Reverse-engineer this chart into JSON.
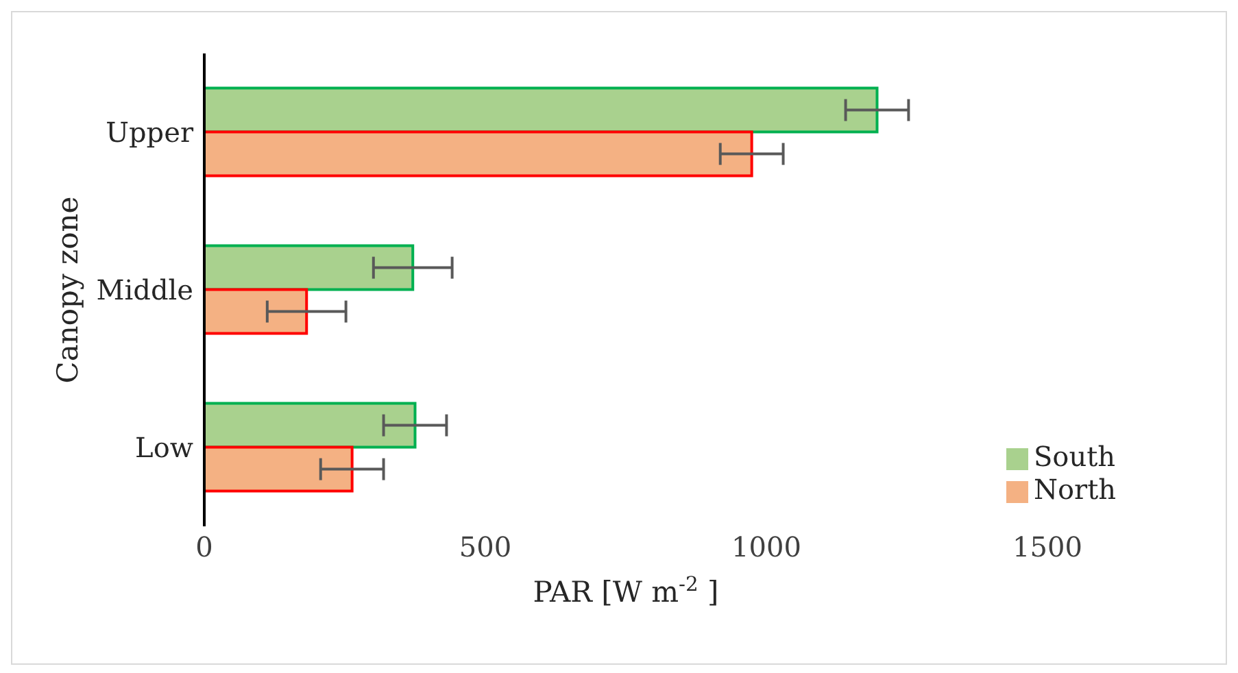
{
  "chart_data": {
    "type": "bar",
    "orientation": "horizontal",
    "xlabel": "PAR [W m$^{-2}$ ]",
    "ylabel": "Canopy zone",
    "categories": [
      "Upper",
      "Middle",
      "Low"
    ],
    "series": [
      {
        "name": "South",
        "color": "#a9d18e",
        "values": [
          1197,
          371,
          375
        ],
        "errors": [
          56,
          70,
          56
        ]
      },
      {
        "name": "North",
        "color": "#f4b183",
        "values": [
          974,
          182,
          263
        ],
        "errors": [
          56,
          70,
          56
        ]
      }
    ],
    "xlim": [
      0,
      1500
    ],
    "xticks": [
      0,
      500,
      1000,
      1500
    ],
    "grid": false,
    "legend": "bottom right"
  }
}
